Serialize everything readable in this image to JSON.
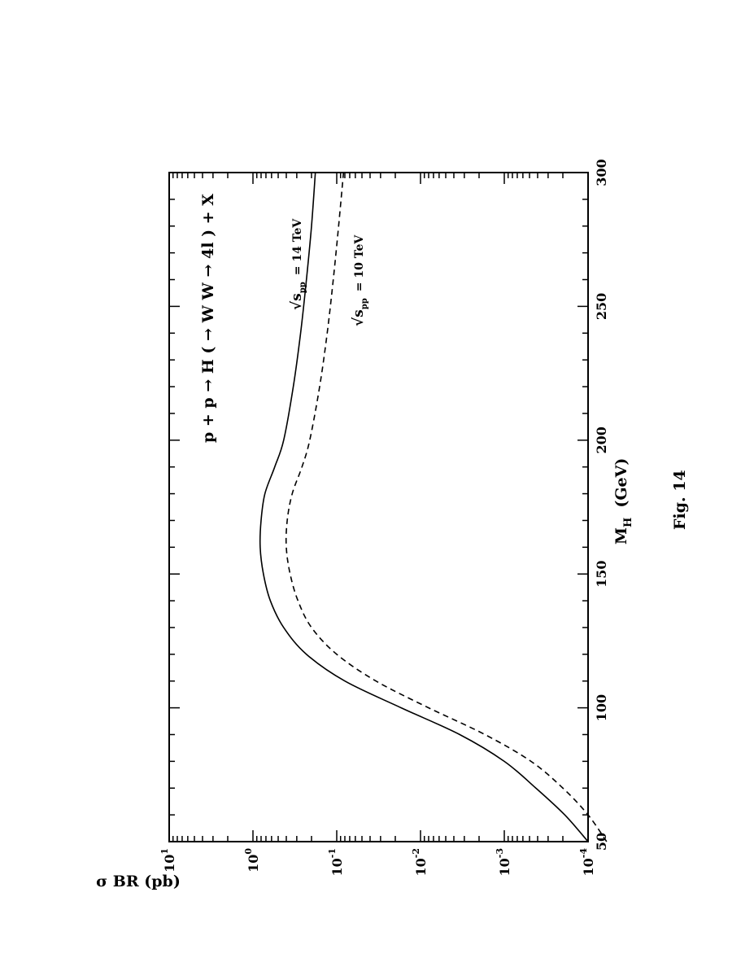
{
  "chart_data": {
    "type": "line",
    "title": "p + p → H ( → W W → 4l ) + X",
    "xlabel": "M",
    "xlabel_sub": "H",
    "xlabel_unit": "(GeV)",
    "ylabel": "σ BR (pb)",
    "xlim": [
      50,
      300
    ],
    "ylim": [
      0.0001,
      10
    ],
    "yscale": "log",
    "x_ticks": [
      "50",
      "100",
      "150",
      "200",
      "250",
      "300"
    ],
    "y_ticks": [
      {
        "base": "10",
        "exp": "-4"
      },
      {
        "base": "10",
        "exp": "-3"
      },
      {
        "base": "10",
        "exp": "-2"
      },
      {
        "base": "10",
        "exp": "-1"
      },
      {
        "base": "10",
        "exp": "0"
      },
      {
        "base": "10",
        "exp": "1"
      }
    ],
    "series": [
      {
        "name": "√s_pp = 14 TeV",
        "label_main": "√s",
        "label_sub": "pp",
        "label_rest": "= 14 TeV",
        "style": "solid",
        "x": [
          50,
          60,
          70,
          80,
          90,
          100,
          110,
          120,
          130,
          140,
          150,
          160,
          170,
          180,
          190,
          200,
          220,
          240,
          260,
          280,
          300
        ],
        "y": [
          0.0001,
          0.00019,
          0.00042,
          0.001,
          0.0034,
          0.017,
          0.08,
          0.23,
          0.43,
          0.62,
          0.75,
          0.82,
          0.8,
          0.72,
          0.55,
          0.43,
          0.33,
          0.27,
          0.23,
          0.2,
          0.18
        ]
      },
      {
        "name": "√s_pp = 10 TeV",
        "label_main": "√s",
        "label_sub": "pp",
        "label_rest": "= 10 TeV",
        "style": "dashed",
        "x": [
          50,
          60,
          70,
          80,
          90,
          100,
          110,
          120,
          130,
          140,
          150,
          160,
          170,
          180,
          190,
          200,
          220,
          240,
          260,
          280,
          300
        ],
        "y": [
          6e-05,
          0.0001,
          0.0002,
          0.00048,
          0.0017,
          0.008,
          0.034,
          0.1,
          0.2,
          0.29,
          0.36,
          0.4,
          0.39,
          0.34,
          0.26,
          0.21,
          0.16,
          0.13,
          0.11,
          0.095,
          0.083
        ]
      }
    ],
    "grid": false,
    "legend": "inline labels"
  },
  "figure": {
    "caption": "Fig. 14"
  }
}
